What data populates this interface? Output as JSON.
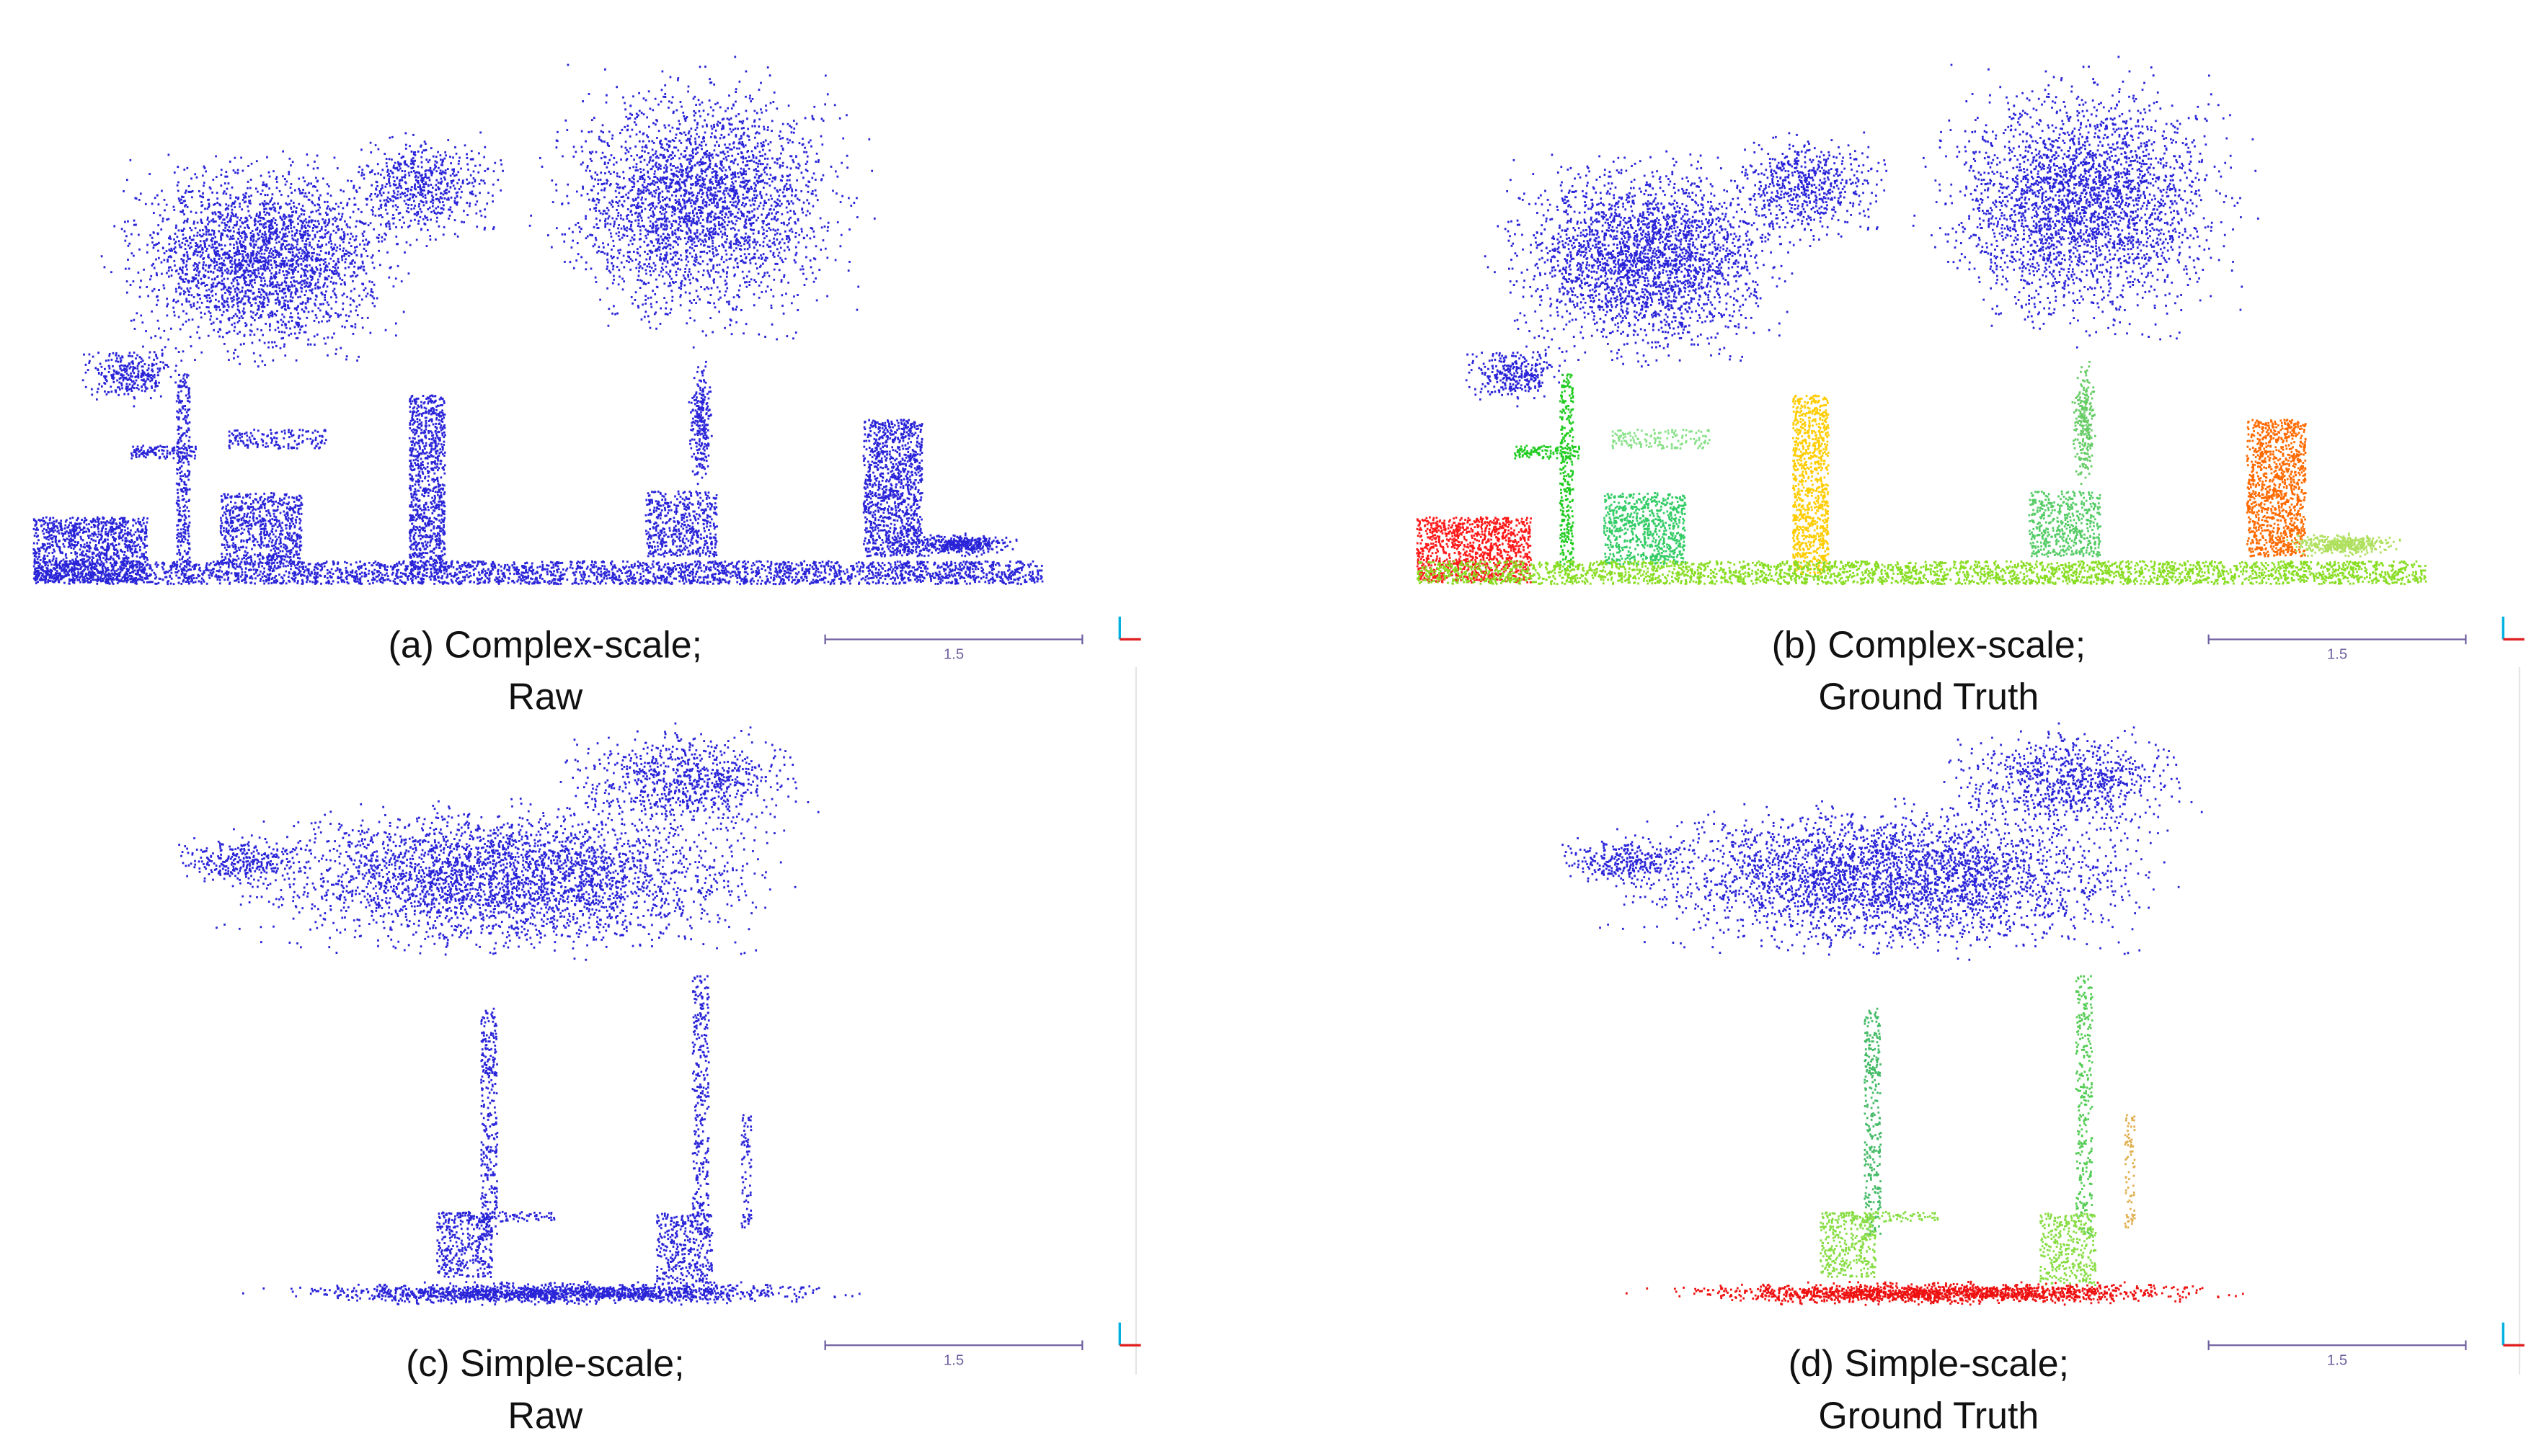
{
  "panels": [
    {
      "caption_line1": "(a) Complex-scale;",
      "caption_line2": "Raw",
      "scale_label": "1.5"
    },
    {
      "caption_line1": "(b) Complex-scale;",
      "caption_line2": "Ground Truth",
      "scale_label": "1.5"
    },
    {
      "caption_line1": "(c) Simple-scale;",
      "caption_line2": "Raw",
      "scale_label": "1.5"
    },
    {
      "caption_line1": "(d) Simple-scale;",
      "caption_line2": "Ground Truth",
      "scale_label": "1.5"
    }
  ]
}
